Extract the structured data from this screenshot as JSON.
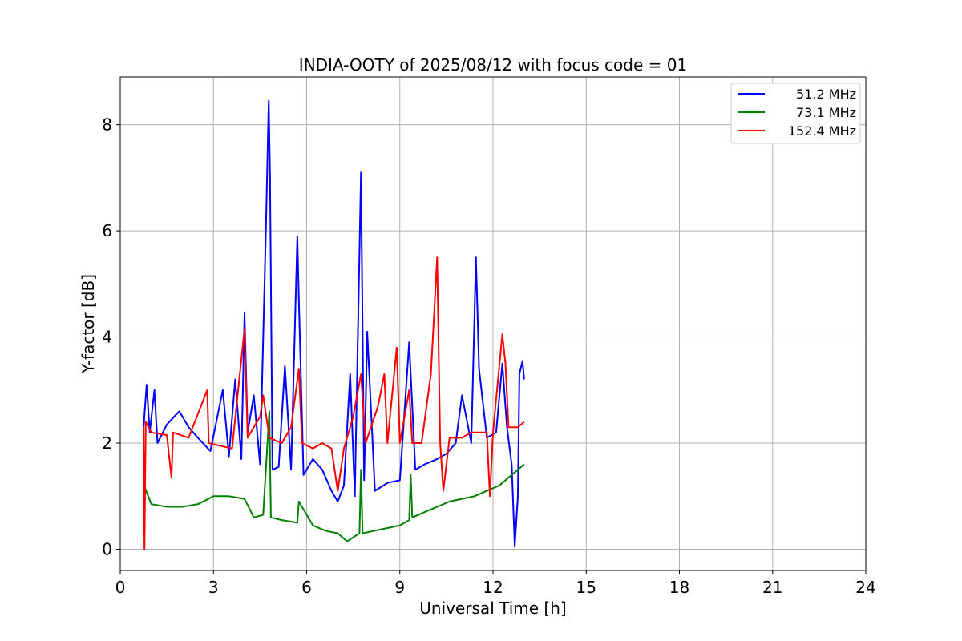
{
  "chart_data": {
    "type": "line",
    "title": "INDIA-OOTY of 2025/08/12 with focus code = 01",
    "xlabel": "Universal Time [h]",
    "ylabel": "Y-factor [dB]",
    "xlim": [
      0,
      24
    ],
    "ylim": [
      -0.4,
      8.9
    ],
    "xticks": [
      0,
      3,
      6,
      9,
      12,
      15,
      18,
      21,
      24
    ],
    "yticks": [
      0,
      2,
      4,
      6,
      8
    ],
    "grid": true,
    "legend_position": "top-right",
    "series": [
      {
        "name": "51.2 MHz",
        "color": "#0000ff",
        "points": [
          [
            0.75,
            2.3
          ],
          [
            0.85,
            3.1
          ],
          [
            0.95,
            2.2
          ],
          [
            1.1,
            3.0
          ],
          [
            1.2,
            2.0
          ],
          [
            1.5,
            2.35
          ],
          [
            1.9,
            2.6
          ],
          [
            2.2,
            2.3
          ],
          [
            2.5,
            2.1
          ],
          [
            2.9,
            1.85
          ],
          [
            3.3,
            3.0
          ],
          [
            3.5,
            1.75
          ],
          [
            3.7,
            3.2
          ],
          [
            3.9,
            1.7
          ],
          [
            4.0,
            4.45
          ],
          [
            4.1,
            2.2
          ],
          [
            4.3,
            2.9
          ],
          [
            4.5,
            1.6
          ],
          [
            4.7,
            6.3
          ],
          [
            4.78,
            8.45
          ],
          [
            4.82,
            7.05
          ],
          [
            4.9,
            1.5
          ],
          [
            5.1,
            1.55
          ],
          [
            5.3,
            3.45
          ],
          [
            5.5,
            1.5
          ],
          [
            5.7,
            5.9
          ],
          [
            5.75,
            4.7
          ],
          [
            5.9,
            1.4
          ],
          [
            6.2,
            1.7
          ],
          [
            6.5,
            1.5
          ],
          [
            6.8,
            1.1
          ],
          [
            7.0,
            0.9
          ],
          [
            7.2,
            1.2
          ],
          [
            7.4,
            3.3
          ],
          [
            7.55,
            1.0
          ],
          [
            7.75,
            7.1
          ],
          [
            7.85,
            1.3
          ],
          [
            7.95,
            4.1
          ],
          [
            8.2,
            1.1
          ],
          [
            8.6,
            1.25
          ],
          [
            9.0,
            1.3
          ],
          [
            9.3,
            3.9
          ],
          [
            9.5,
            1.5
          ],
          [
            9.8,
            1.6
          ],
          [
            10.2,
            1.7
          ],
          [
            10.5,
            1.8
          ],
          [
            10.8,
            2.0
          ],
          [
            11.0,
            2.9
          ],
          [
            11.3,
            2.0
          ],
          [
            11.45,
            5.5
          ],
          [
            11.55,
            3.4
          ],
          [
            11.8,
            2.1
          ],
          [
            12.1,
            2.2
          ],
          [
            12.3,
            3.5
          ],
          [
            12.45,
            2.3
          ],
          [
            12.6,
            1.6
          ],
          [
            12.7,
            0.05
          ],
          [
            12.8,
            1.0
          ],
          [
            12.85,
            3.3
          ],
          [
            12.95,
            3.55
          ],
          [
            13.0,
            3.2
          ]
        ]
      },
      {
        "name": "73.1 MHz",
        "color": "#008000",
        "points": [
          [
            0.75,
            0.9
          ],
          [
            0.8,
            1.15
          ],
          [
            1.0,
            0.85
          ],
          [
            1.5,
            0.8
          ],
          [
            2.0,
            0.8
          ],
          [
            2.5,
            0.85
          ],
          [
            3.0,
            1.0
          ],
          [
            3.5,
            1.0
          ],
          [
            4.0,
            0.95
          ],
          [
            4.3,
            0.6
          ],
          [
            4.6,
            0.65
          ],
          [
            4.8,
            2.6
          ],
          [
            4.85,
            0.6
          ],
          [
            5.2,
            0.55
          ],
          [
            5.7,
            0.5
          ],
          [
            5.75,
            0.9
          ],
          [
            6.2,
            0.45
          ],
          [
            6.6,
            0.35
          ],
          [
            7.0,
            0.3
          ],
          [
            7.3,
            0.15
          ],
          [
            7.7,
            0.3
          ],
          [
            7.75,
            1.5
          ],
          [
            7.8,
            0.3
          ],
          [
            8.2,
            0.35
          ],
          [
            8.6,
            0.4
          ],
          [
            9.0,
            0.45
          ],
          [
            9.3,
            0.55
          ],
          [
            9.35,
            1.4
          ],
          [
            9.4,
            0.6
          ],
          [
            9.8,
            0.7
          ],
          [
            10.2,
            0.8
          ],
          [
            10.6,
            0.9
          ],
          [
            11.0,
            0.95
          ],
          [
            11.4,
            1.0
          ],
          [
            11.8,
            1.1
          ],
          [
            12.2,
            1.2
          ],
          [
            12.5,
            1.35
          ],
          [
            12.8,
            1.5
          ],
          [
            13.0,
            1.6
          ]
        ]
      },
      {
        "name": "152.4 MHz",
        "color": "#ff0000",
        "points": [
          [
            0.75,
            2.3
          ],
          [
            0.78,
            0.0
          ],
          [
            0.82,
            2.4
          ],
          [
            1.0,
            2.2
          ],
          [
            1.5,
            2.15
          ],
          [
            1.65,
            1.35
          ],
          [
            1.7,
            2.2
          ],
          [
            2.2,
            2.1
          ],
          [
            2.8,
            3.0
          ],
          [
            2.85,
            2.0
          ],
          [
            3.2,
            1.95
          ],
          [
            3.6,
            1.9
          ],
          [
            4.0,
            4.15
          ],
          [
            4.1,
            2.1
          ],
          [
            4.3,
            2.3
          ],
          [
            4.5,
            2.5
          ],
          [
            4.6,
            2.9
          ],
          [
            4.8,
            2.1
          ],
          [
            5.2,
            2.0
          ],
          [
            5.5,
            2.3
          ],
          [
            5.75,
            3.4
          ],
          [
            5.85,
            2.0
          ],
          [
            6.2,
            1.9
          ],
          [
            6.5,
            2.0
          ],
          [
            6.8,
            1.9
          ],
          [
            7.0,
            1.1
          ],
          [
            7.2,
            1.9
          ],
          [
            7.5,
            2.5
          ],
          [
            7.75,
            3.3
          ],
          [
            7.9,
            2.0
          ],
          [
            8.3,
            2.7
          ],
          [
            8.5,
            3.3
          ],
          [
            8.6,
            2.0
          ],
          [
            8.9,
            3.8
          ],
          [
            9.0,
            2.0
          ],
          [
            9.3,
            3.0
          ],
          [
            9.4,
            2.0
          ],
          [
            9.7,
            2.0
          ],
          [
            10.0,
            3.3
          ],
          [
            10.2,
            5.5
          ],
          [
            10.3,
            2.0
          ],
          [
            10.4,
            1.1
          ],
          [
            10.6,
            2.1
          ],
          [
            11.0,
            2.1
          ],
          [
            11.3,
            2.2
          ],
          [
            11.8,
            2.2
          ],
          [
            11.9,
            1.0
          ],
          [
            12.0,
            2.2
          ],
          [
            12.3,
            4.05
          ],
          [
            12.4,
            3.5
          ],
          [
            12.5,
            2.3
          ],
          [
            12.8,
            2.3
          ],
          [
            13.0,
            2.4
          ]
        ]
      }
    ]
  }
}
